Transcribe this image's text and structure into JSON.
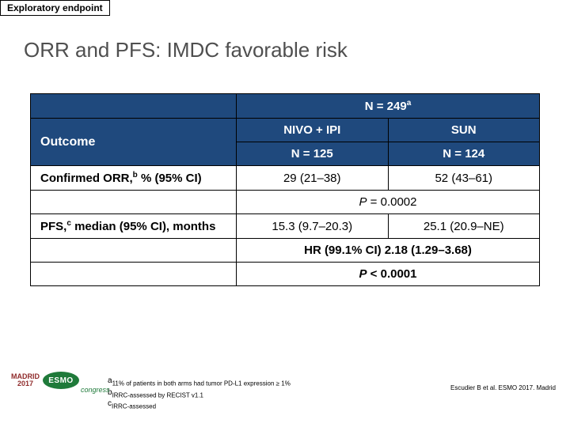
{
  "tag": "Exploratory endpoint",
  "title": "ORR and PFS: IMDC favorable risk",
  "table": {
    "header_n": "N = 249",
    "header_n_sup": "a",
    "outcome_label": "Outcome",
    "arm1": "NIVO + IPI",
    "arm2": "SUN",
    "arm1_n": "N = 125",
    "arm2_n": "N = 124",
    "row1_label_a": "Confirmed ORR,",
    "row1_label_sup": "b",
    "row1_label_b": " % (95% CI)",
    "row1_v1": "29 (21–38)",
    "row1_v2": "52 (43–61)",
    "row_p1_prefix": "P",
    "row_p1_val": " = 0.0002",
    "row2_label_a": "PFS,",
    "row2_label_sup": "c",
    "row2_label_b": " median (95% CI), months",
    "row2_v1": "15.3 (9.7–20.3)",
    "row2_v2": "25.1 (20.9–NE)",
    "row_hr": "HR (99.1% CI) 2.18 (1.29–3.68)",
    "row_p2_prefix": "P",
    "row_p2_val": " < 0.0001"
  },
  "footnotes": {
    "a": "11% of patients in both arms had tumor PD-L1 expression ≥ 1%",
    "b": "IRRC-assessed by RECIST v1.1",
    "c": "IRRC-assessed"
  },
  "citation": "Escudier B et al. ESMO 2017. Madrid",
  "logo": {
    "madrid": "MADRID",
    "year": "2017",
    "esmo": "ESMO",
    "congress": "congress"
  },
  "colors": {
    "header_bg": "#1f497d",
    "title_color": "#4f4f4f"
  }
}
